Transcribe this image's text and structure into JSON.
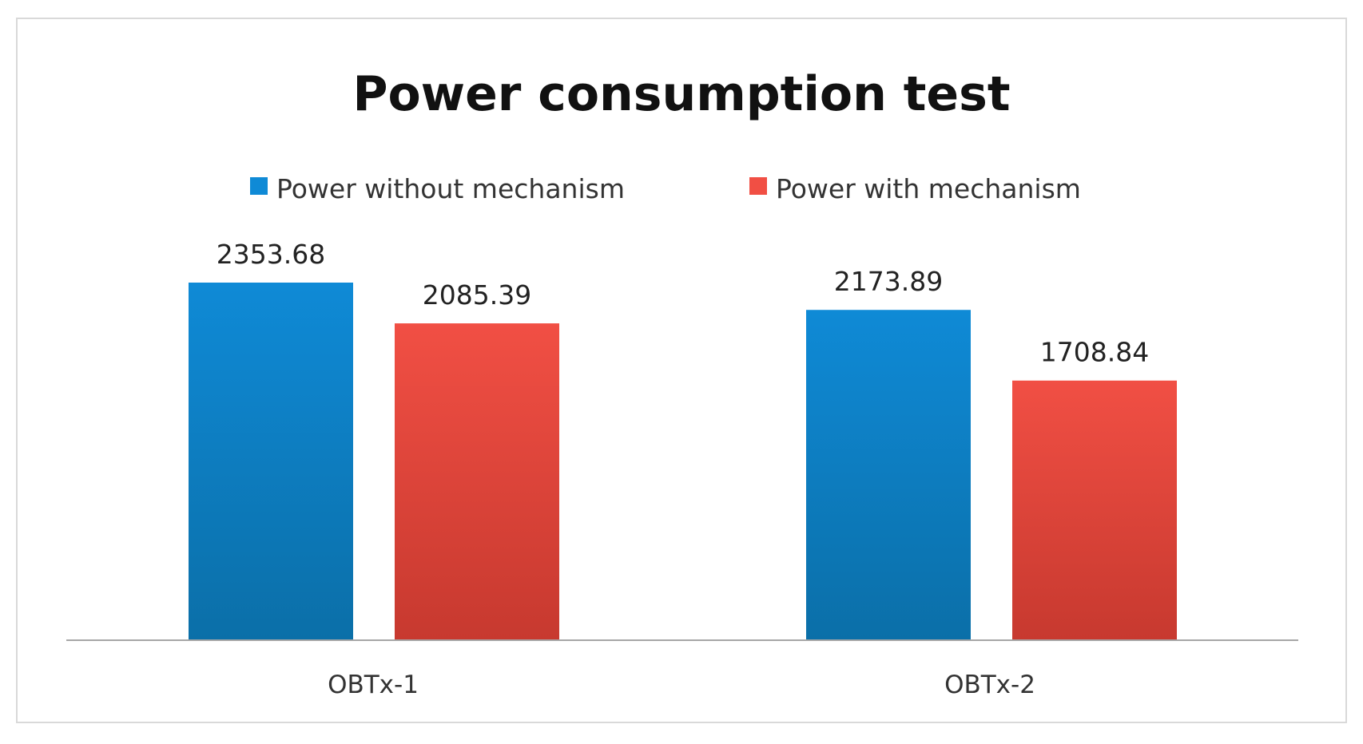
{
  "chart_data": {
    "type": "bar",
    "title": "Power consumption test",
    "categories": [
      "OBTx-1",
      "OBTx-2"
    ],
    "series": [
      {
        "name": "Power without mechanism",
        "color": "#0f8ad6",
        "color_dark": "#0b6fa8",
        "values": [
          2353.68,
          2173.89
        ]
      },
      {
        "name": "Power with mechanism",
        "color": "#f14f44",
        "color_dark": "#c7392f",
        "values": [
          2085.39,
          1708.84
        ]
      }
    ],
    "data_labels": [
      [
        "2353.68",
        "2173.89"
      ],
      [
        "2085.39",
        "1708.84"
      ]
    ],
    "xlabel": "",
    "ylabel": "",
    "ylim": [
      0,
      2353.68
    ],
    "grid": false,
    "legend": "top"
  }
}
